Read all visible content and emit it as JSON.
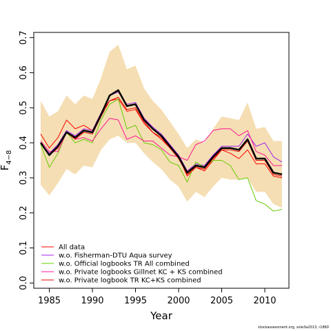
{
  "chart_data": {
    "type": "line",
    "title": "",
    "xlabel": "Year",
    "ylabel": "F",
    "ylabel_subscript": "4−8",
    "xlim": [
      1983.2,
      2012.8
    ],
    "ylim": [
      -0.015,
      0.715
    ],
    "xticks": [
      1985,
      1990,
      1995,
      2000,
      2005,
      2010
    ],
    "yticks": [
      0.0,
      0.1,
      0.2,
      0.3,
      0.4,
      0.5,
      0.6,
      0.7
    ],
    "grid": false,
    "legend_position": "bottom-left",
    "x": [
      1984,
      1985,
      1986,
      1987,
      1988,
      1989,
      1990,
      1991,
      1992,
      1993,
      1994,
      1995,
      1996,
      1997,
      1998,
      1999,
      2000,
      2001,
      2002,
      2003,
      2004,
      2005,
      2006,
      2007,
      2008,
      2009,
      2010,
      2011,
      2012
    ],
    "confidence_band": {
      "color": "#F5DEB3",
      "lower": [
        0.28,
        0.25,
        0.285,
        0.325,
        0.31,
        0.335,
        0.33,
        0.38,
        0.41,
        0.42,
        0.4,
        0.4,
        0.37,
        0.345,
        0.325,
        0.295,
        0.275,
        0.232,
        0.26,
        0.245,
        0.275,
        0.3,
        0.295,
        0.295,
        0.3,
        0.26,
        0.26,
        0.225,
        0.215
      ],
      "upper": [
        0.52,
        0.475,
        0.49,
        0.535,
        0.51,
        0.535,
        0.525,
        0.585,
        0.66,
        0.68,
        0.61,
        0.62,
        0.555,
        0.52,
        0.495,
        0.46,
        0.425,
        0.385,
        0.41,
        0.4,
        0.44,
        0.475,
        0.47,
        0.465,
        0.515,
        0.44,
        0.445,
        0.405,
        0.405
      ]
    },
    "series": [
      {
        "name": "",
        "color": "#000000",
        "width": 2.5,
        "values": [
          0.4,
          0.365,
          0.39,
          0.43,
          0.415,
          0.435,
          0.43,
          0.48,
          0.535,
          0.55,
          0.505,
          0.51,
          0.465,
          0.44,
          0.42,
          0.39,
          0.36,
          0.315,
          0.335,
          0.33,
          0.36,
          0.385,
          0.385,
          0.38,
          0.41,
          0.355,
          0.355,
          0.315,
          0.31
        ]
      },
      {
        "name": "All data",
        "color": "#FF0000",
        "width": 1,
        "values": [
          0.425,
          0.385,
          0.415,
          0.465,
          0.44,
          0.45,
          0.435,
          0.485,
          0.52,
          0.525,
          0.49,
          0.495,
          0.455,
          0.43,
          0.41,
          0.385,
          0.36,
          0.305,
          0.33,
          0.32,
          0.35,
          0.38,
          0.37,
          0.355,
          0.38,
          0.34,
          0.34,
          0.305,
          0.3
        ]
      },
      {
        "name": "w.o. Fisherman-DTU Aqua survey",
        "color": "#A020F0",
        "width": 1,
        "values": [
          0.4,
          0.37,
          0.395,
          0.435,
          0.42,
          0.44,
          0.435,
          0.485,
          0.535,
          0.545,
          0.51,
          0.515,
          0.47,
          0.445,
          0.425,
          0.395,
          0.365,
          0.32,
          0.34,
          0.335,
          0.365,
          0.39,
          0.39,
          0.39,
          0.425,
          0.39,
          0.4,
          0.36,
          0.345
        ]
      },
      {
        "name": "w.o. Official logbooks TR All combined",
        "color": "#66CC00",
        "width": 1,
        "values": [
          0.395,
          0.33,
          0.37,
          0.43,
          0.4,
          0.41,
          0.4,
          0.465,
          0.51,
          0.525,
          0.44,
          0.45,
          0.4,
          0.395,
          0.38,
          0.345,
          0.335,
          0.288,
          0.345,
          0.33,
          0.35,
          0.35,
          0.335,
          0.295,
          0.3,
          0.235,
          0.225,
          0.205,
          0.21
        ]
      },
      {
        "name": "w.o. Private logbooks Gillnet KC + KS combined",
        "color": "#FF1493",
        "width": 1,
        "values": [
          0.405,
          0.375,
          0.375,
          0.43,
          0.41,
          0.415,
          0.405,
          0.44,
          0.47,
          0.465,
          0.41,
          0.42,
          0.405,
          0.405,
          0.385,
          0.365,
          0.36,
          0.35,
          0.395,
          0.405,
          0.435,
          0.44,
          0.44,
          0.42,
          0.435,
          0.375,
          0.365,
          0.335,
          0.335
        ]
      },
      {
        "name": "w.o. Private logbook TR KC+KS combined",
        "color": "#E00000",
        "width": 1,
        "values": [
          0.4,
          0.365,
          0.385,
          0.43,
          0.41,
          0.43,
          0.425,
          0.475,
          0.52,
          0.53,
          0.495,
          0.5,
          0.46,
          0.43,
          0.415,
          0.385,
          0.355,
          0.31,
          0.33,
          0.325,
          0.355,
          0.38,
          0.38,
          0.375,
          0.405,
          0.35,
          0.35,
          0.31,
          0.305
        ]
      }
    ]
  },
  "footnote": "stockassessment.org, sole3a2013, r1860"
}
